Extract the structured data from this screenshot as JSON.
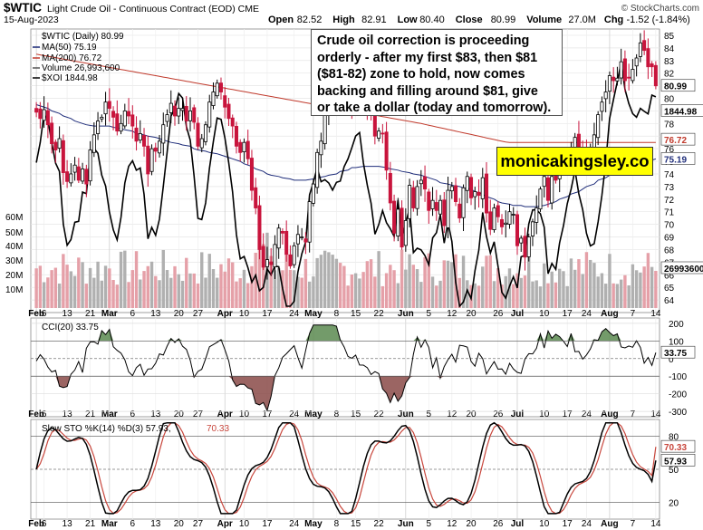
{
  "header": {
    "symbol": "$WTIC",
    "name": "Light Crude Oil - Continuous Contract (EOD)",
    "exchange": "CME",
    "date": "15-Aug-2023",
    "open_label": "Open",
    "open": "82.52",
    "high_label": "High",
    "high": "82.91",
    "low_label": "Low",
    "low": "80.40",
    "close_label": "Close",
    "close": "80.99",
    "volume_label": "Volume",
    "volume": "27.0M",
    "chg_label": "Chg",
    "chg": "-1.52 (-1.84%)",
    "chg_arrow": "▼",
    "credit": "© StockCharts.com"
  },
  "legend": {
    "price": "$WTIC (Daily) 80.99",
    "ma50": "MA(50) 75.19",
    "ma200": "MA(200) 76.72",
    "volume": "Volume 26,993,600",
    "xoi": "$XOI 1844.98"
  },
  "annotation": {
    "text_lines": [
      "Crude oil correction is proceeding",
      "orderly - after my first $83, then $81",
      "($81-82) zone to hold, now comes",
      "backing and filling around $81, give",
      "or take a dollar (today and tomorrow)."
    ],
    "brand": "monicakingsley.co"
  },
  "colors": {
    "up": "#000000",
    "down": "#c8143c",
    "ma50": "#1f2d7a",
    "ma200": "#c0392b",
    "vol_down": "#e5a0a8",
    "vol_up": "#b0b0b0",
    "cci_pos": "#5a8a50",
    "cci_neg": "#8a4a48",
    "sto_k": "#000000",
    "sto_d": "#c8463c"
  },
  "chart_data": [
    {
      "type": "candlestick",
      "title": "$WTIC (Daily)",
      "ylim": [
        63,
        85.5
      ],
      "y_ticks": [
        64,
        65,
        66,
        67,
        68,
        69,
        70,
        71,
        72,
        73,
        74,
        75,
        76,
        77,
        78,
        79,
        80,
        81,
        82,
        83,
        84,
        85
      ],
      "x_ticks": [
        "Feb",
        "6",
        "13",
        "21",
        "Mar",
        "6",
        "13",
        "20",
        "27",
        "Apr",
        "10",
        "17",
        "24",
        "May",
        "8",
        "15",
        "22",
        "Jun",
        "5",
        "12",
        "20",
        "26",
        "Jul",
        "10",
        "17",
        "24",
        "Aug",
        "7",
        "14"
      ],
      "close": [
        78.9,
        78.4,
        79.1,
        77.9,
        76.4,
        75.9,
        76.8,
        74.1,
        73.4,
        74.0,
        74.7,
        73.5,
        74.4,
        73.2,
        75.9,
        77.1,
        78.2,
        78.5,
        79.7,
        79.2,
        78.5,
        77.4,
        78.0,
        79.0,
        78.6,
        77.8,
        76.6,
        77.2,
        76.2,
        74.0,
        76.0,
        75.8,
        76.6,
        77.9,
        78.7,
        79.6,
        78.6,
        79.2,
        79.2,
        78.2,
        79.0,
        78.1,
        76.2,
        76.8,
        77.9,
        79.7,
        80.5,
        81.2,
        80.5,
        79.3,
        78.4,
        77.8,
        76.2,
        75.7,
        76.5,
        75.2,
        72.7,
        71.3,
        68.0,
        66.6,
        67.2,
        66.8,
        68.4,
        69.7,
        69.3,
        67.6,
        66.7,
        68.3,
        69.2,
        69.0,
        68.6,
        71.8,
        73.2,
        75.7,
        76.6,
        78.9,
        80.4,
        80.8,
        81.4,
        80.6,
        80.3,
        79.4,
        79.2,
        79.8,
        80.6,
        79.4,
        79.1,
        78.9,
        77.0,
        77.4,
        77.2,
        74.3,
        71.7,
        69.3,
        71.2,
        68.2,
        70.3,
        73.1,
        71.3,
        73.0,
        73.5,
        72.8,
        71.1,
        71.9,
        71.1,
        71.9,
        69.9,
        72.7,
        73.0,
        71.8,
        70.5,
        72.9,
        73.8,
        72.1,
        72.6,
        72.3,
        73.7,
        70.9,
        69.6,
        71.3,
        70.6,
        69.8,
        70.1,
        71.0,
        70.8,
        68.3,
        68.9,
        67.4,
        69.0,
        70.2,
        71.3,
        72.8,
        73.8,
        71.9,
        73.8,
        73.5,
        74.9,
        75.0,
        75.4,
        75.6,
        76.9,
        75.7,
        75.8,
        75.6,
        76.1,
        77.1,
        78.7,
        79.7,
        80.5,
        81.8,
        81.4,
        81.6,
        82.9,
        81.4,
        81.6,
        82.3,
        83.2,
        84.4,
        83.8,
        82.5,
        82.5,
        80.99
      ],
      "ma50": [
        79.5,
        79.4,
        79.2,
        79.0,
        78.8,
        78.6,
        78.4,
        78.2,
        78.0,
        77.9,
        77.8,
        77.8,
        77.8,
        77.8,
        77.7,
        77.6,
        77.5,
        77.4,
        77.2,
        77.1,
        77.0,
        76.9,
        76.8,
        76.6,
        76.5,
        76.4,
        76.3,
        76.2,
        76.0,
        75.9,
        75.8,
        75.7,
        75.6,
        75.5,
        75.3,
        75.2,
        75.0,
        74.8,
        74.6,
        74.4,
        74.2,
        74.0,
        73.9,
        73.8,
        73.7,
        73.6,
        73.5,
        73.5,
        73.5,
        73.6,
        73.7,
        73.8,
        73.9,
        74.0,
        74.2,
        74.3,
        74.5,
        74.5,
        74.6,
        74.6,
        74.6,
        74.6,
        74.5,
        74.4,
        74.3,
        74.2,
        74.1,
        74.0,
        73.9,
        73.8,
        73.7,
        73.5,
        73.3,
        73.2,
        73.1,
        73.0,
        72.9,
        72.8,
        72.6,
        72.4,
        72.2,
        72.0,
        71.8,
        71.7,
        71.6,
        71.5,
        71.5,
        71.4,
        71.4,
        71.4,
        71.5,
        71.6,
        71.8,
        72.0,
        72.2,
        72.4,
        72.6,
        72.8,
        73.0,
        73.2,
        73.5,
        73.7,
        73.9,
        74.1,
        74.3,
        74.5,
        74.7,
        74.9,
        75.0,
        75.1,
        75.19
      ]
    },
    {
      "type": "line",
      "title": "$XOI",
      "series_note": "relative, overlay on price panel"
    },
    {
      "type": "bar",
      "title": "Volume",
      "y_ticks_labels": [
        "10M",
        "20M",
        "30M",
        "40M",
        "50M",
        "60M"
      ],
      "last_label": "26993600"
    },
    {
      "type": "line",
      "title": "CCI(20) 33.75",
      "ylim": [
        -330,
        230
      ],
      "y_ticks": [
        -300,
        -200,
        -100,
        0,
        100,
        200
      ],
      "last_label": "33.75"
    },
    {
      "type": "line",
      "title": "Slow STO %K(14) %D(3) 57.93, 70.33",
      "ylim": [
        5,
        95
      ],
      "y_ticks": [
        20,
        50,
        80
      ],
      "k_last_label": "57.93",
      "d_last_label": "70.33"
    }
  ],
  "axis_labels": {
    "price_right_tags": [
      "80.99",
      "1844.98",
      "76.72",
      "75.19"
    ],
    "volume_right_tag": "26993600",
    "volume_left": [
      "60M",
      "50M",
      "40M",
      "30M",
      "20M",
      "10M"
    ],
    "cci_title": "CCI(20) 33.75",
    "sto_title": "Slow STO %K(14) %D(3) 57.93, 70.33",
    "sto_title_black": "Slow STO %K(14) %D(3) 57.93,",
    "sto_title_red": "70.33"
  }
}
